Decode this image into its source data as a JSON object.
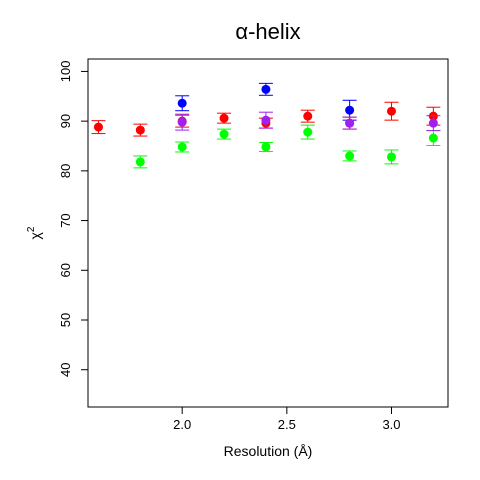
{
  "chart_data": {
    "type": "scatter",
    "title": "α-helix",
    "xlabel": "Resolution (Å)",
    "ylabel_base": "χ",
    "ylabel_sup": "2",
    "xlim": [
      1.55,
      3.27
    ],
    "ylim": [
      32.5,
      102.5
    ],
    "xticks": [
      2.0,
      2.5,
      3.0
    ],
    "xtick_labels": [
      "2.0",
      "2.5",
      "3.0"
    ],
    "yticks": [
      40,
      50,
      60,
      70,
      80,
      90,
      100
    ],
    "ytick_labels": [
      "40",
      "50",
      "60",
      "70",
      "80",
      "90",
      "100"
    ],
    "grid": false,
    "legend": "none",
    "series": [
      {
        "color": "#ff0000",
        "points": [
          {
            "x": 1.6,
            "y": 88.8,
            "err": 1.3
          },
          {
            "x": 1.8,
            "y": 88.2,
            "err": 1.2
          },
          {
            "x": 2.0,
            "y": 90.0,
            "err": 1.2
          },
          {
            "x": 2.2,
            "y": 90.6,
            "err": 1.0
          },
          {
            "x": 2.4,
            "y": 89.6,
            "err": 1.0
          },
          {
            "x": 2.6,
            "y": 91.0,
            "err": 1.2
          },
          {
            "x": 2.8,
            "y": 89.6,
            "err": 1.2
          },
          {
            "x": 3.0,
            "y": 92.0,
            "err": 1.8
          },
          {
            "x": 3.2,
            "y": 91.0,
            "err": 1.8
          }
        ]
      },
      {
        "color": "#00ff00",
        "points": [
          {
            "x": 1.8,
            "y": 81.8,
            "err": 1.2
          },
          {
            "x": 2.0,
            "y": 84.8,
            "err": 1.0
          },
          {
            "x": 2.2,
            "y": 87.4,
            "err": 1.0
          },
          {
            "x": 2.4,
            "y": 84.8,
            "err": 0.9
          },
          {
            "x": 2.6,
            "y": 87.8,
            "err": 1.4
          },
          {
            "x": 2.8,
            "y": 83.0,
            "err": 1.0
          },
          {
            "x": 3.0,
            "y": 82.8,
            "err": 1.4
          },
          {
            "x": 3.2,
            "y": 86.6,
            "err": 1.5
          }
        ]
      },
      {
        "color": "#0000ff",
        "points": [
          {
            "x": 2.0,
            "y": 93.6,
            "err": 1.5
          },
          {
            "x": 2.4,
            "y": 96.4,
            "err": 1.2
          },
          {
            "x": 2.8,
            "y": 92.2,
            "err": 2.0
          }
        ]
      },
      {
        "color": "#a020f0",
        "points": [
          {
            "x": 2.0,
            "y": 89.8,
            "err": 1.6
          },
          {
            "x": 2.4,
            "y": 90.2,
            "err": 1.6
          },
          {
            "x": 2.8,
            "y": 89.6,
            "err": 1.2
          },
          {
            "x": 3.2,
            "y": 89.6,
            "err": 1.5
          }
        ]
      }
    ]
  }
}
